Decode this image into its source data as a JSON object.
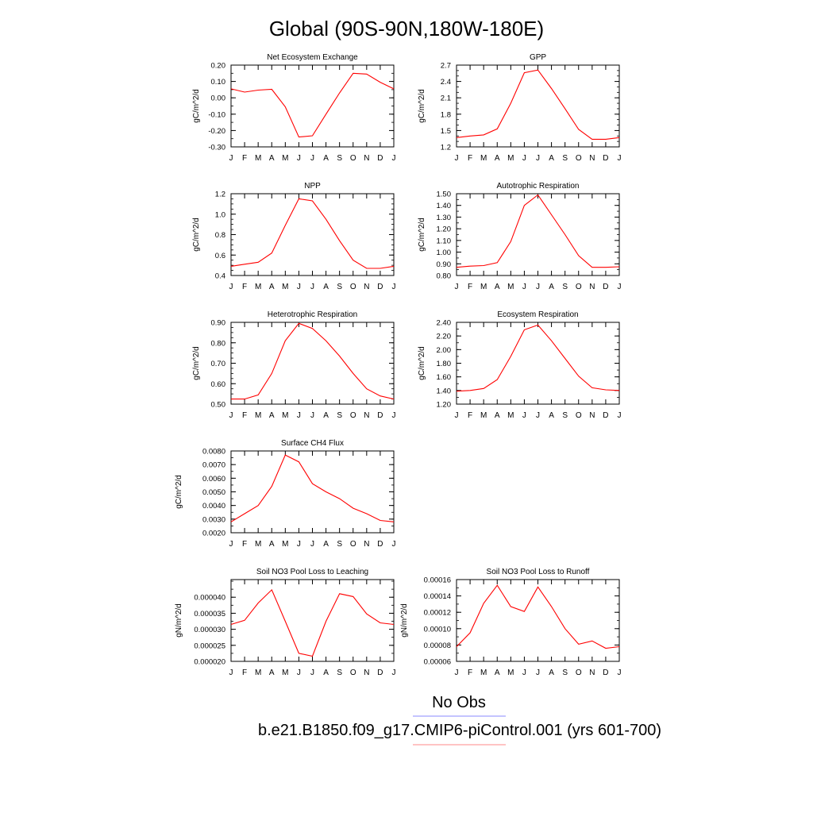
{
  "page": {
    "title": "Global (90S-90N,180W-180E)",
    "legend": {
      "obs_label": "No Obs",
      "obs_color": "#8a8aff",
      "model_label": "b.e21.B1850.f09_g17.CMIP6-piControl.001 (yrs 601-700)",
      "model_color": "#ff8a8a"
    }
  },
  "chart_data": [
    {
      "type": "line",
      "title": "Net Ecosystem Exchange",
      "ylabel": "gC/m^2/d",
      "x": [
        "J",
        "F",
        "M",
        "A",
        "M",
        "J",
        "J",
        "A",
        "S",
        "O",
        "N",
        "D",
        "J"
      ],
      "series": [
        {
          "color": "#ff0000",
          "values": [
            0.055,
            0.035,
            0.047,
            0.052,
            -0.055,
            -0.24,
            -0.232,
            -0.1,
            0.03,
            0.15,
            0.145,
            0.095,
            0.055
          ]
        }
      ],
      "ylim": [
        -0.3,
        0.2
      ],
      "yticks": [
        "0.20",
        "0.10",
        "0.00",
        "-0.10",
        "-0.20",
        "-0.30"
      ],
      "yminor": 0.05
    },
    {
      "type": "line",
      "title": "GPP",
      "ylabel": "gC/m^2/d",
      "x": [
        "J",
        "F",
        "M",
        "A",
        "M",
        "J",
        "J",
        "A",
        "S",
        "O",
        "N",
        "D",
        "J"
      ],
      "series": [
        {
          "color": "#ff0000",
          "values": [
            1.37,
            1.4,
            1.42,
            1.53,
            2.0,
            2.56,
            2.61,
            2.27,
            1.9,
            1.52,
            1.34,
            1.34,
            1.37
          ]
        }
      ],
      "ylim": [
        1.2,
        2.7
      ],
      "yticks": [
        "2.7",
        "2.4",
        "2.1",
        "1.8",
        "1.5",
        "1.2"
      ],
      "yminor": 0.1
    },
    {
      "type": "line",
      "title": "NPP",
      "ylabel": "gC/m^2/d",
      "x": [
        "J",
        "F",
        "M",
        "A",
        "M",
        "J",
        "J",
        "A",
        "S",
        "O",
        "N",
        "D",
        "J"
      ],
      "series": [
        {
          "color": "#ff0000",
          "values": [
            0.49,
            0.51,
            0.53,
            0.62,
            0.89,
            1.15,
            1.13,
            0.95,
            0.74,
            0.55,
            0.47,
            0.47,
            0.49
          ]
        }
      ],
      "ylim": [
        0.4,
        1.2
      ],
      "yticks": [
        "1.2",
        "1.0",
        "0.8",
        "0.6",
        "0.4"
      ],
      "yminor": 0.05
    },
    {
      "type": "line",
      "title": "Autotrophic Respiration",
      "ylabel": "gC/m^2/d",
      "x": [
        "J",
        "F",
        "M",
        "A",
        "M",
        "J",
        "J",
        "A",
        "S",
        "O",
        "N",
        "D",
        "J"
      ],
      "series": [
        {
          "color": "#ff0000",
          "values": [
            0.87,
            0.88,
            0.885,
            0.91,
            1.09,
            1.4,
            1.49,
            1.32,
            1.15,
            0.97,
            0.87,
            0.87,
            0.875
          ]
        }
      ],
      "ylim": [
        0.8,
        1.5
      ],
      "yticks": [
        "1.50",
        "1.40",
        "1.30",
        "1.20",
        "1.10",
        "1.00",
        "0.90",
        "0.80"
      ],
      "yminor": 0.05
    },
    {
      "type": "line",
      "title": "Heterotrophic Respiration",
      "ylabel": "gC/m^2/d",
      "x": [
        "J",
        "F",
        "M",
        "A",
        "M",
        "J",
        "J",
        "A",
        "S",
        "O",
        "N",
        "D",
        "J"
      ],
      "series": [
        {
          "color": "#ff0000",
          "values": [
            0.525,
            0.525,
            0.545,
            0.65,
            0.81,
            0.895,
            0.87,
            0.81,
            0.735,
            0.65,
            0.575,
            0.54,
            0.525
          ]
        }
      ],
      "ylim": [
        0.5,
        0.9
      ],
      "yticks": [
        "0.90",
        "0.80",
        "0.70",
        "0.60",
        "0.50"
      ],
      "yminor": 0.025
    },
    {
      "type": "line",
      "title": "Ecosystem Respiration",
      "ylabel": "gC/m^2/d",
      "x": [
        "J",
        "F",
        "M",
        "A",
        "M",
        "J",
        "J",
        "A",
        "S",
        "O",
        "N",
        "D",
        "J"
      ],
      "series": [
        {
          "color": "#ff0000",
          "values": [
            1.39,
            1.4,
            1.43,
            1.56,
            1.9,
            2.29,
            2.36,
            2.13,
            1.87,
            1.61,
            1.44,
            1.41,
            1.4
          ]
        }
      ],
      "ylim": [
        1.2,
        2.4
      ],
      "yticks": [
        "2.40",
        "2.20",
        "2.00",
        "1.80",
        "1.60",
        "1.40",
        "1.20"
      ],
      "yminor": 0.1
    },
    {
      "type": "line",
      "title": "Surface CH4 Flux",
      "ylabel": "gC/m^2/d",
      "x": [
        "J",
        "F",
        "M",
        "A",
        "M",
        "J",
        "J",
        "A",
        "S",
        "O",
        "N",
        "D",
        "J"
      ],
      "series": [
        {
          "color": "#ff0000",
          "values": [
            0.0028,
            0.0034,
            0.004,
            0.0054,
            0.0077,
            0.0072,
            0.0056,
            0.005,
            0.0045,
            0.0038,
            0.0034,
            0.0029,
            0.0028
          ]
        }
      ],
      "ylim": [
        0.002,
        0.008
      ],
      "yticks": [
        "0.0080",
        "0.0070",
        "0.0060",
        "0.0050",
        "0.0040",
        "0.0030",
        "0.0020"
      ],
      "yminor": 0.0005
    },
    null,
    {
      "type": "line",
      "title": "Soil NO3 Pool Loss to Leaching",
      "ylabel": "gN/m^2/d",
      "x": [
        "J",
        "F",
        "M",
        "A",
        "M",
        "J",
        "J",
        "A",
        "S",
        "O",
        "N",
        "D",
        "J"
      ],
      "series": [
        {
          "color": "#ff0000",
          "values": [
            3.15e-05,
            3.28e-05,
            3.82e-05,
            4.23e-05,
            3.25e-05,
            2.25e-05,
            2.16e-05,
            3.25e-05,
            4.11e-05,
            4.02e-05,
            3.48e-05,
            3.2e-05,
            3.15e-05
          ]
        }
      ],
      "ylim": [
        2e-05,
        4.55e-05
      ],
      "yticks": [
        "0.000040",
        "0.000035",
        "0.000030",
        "0.000025",
        "0.000020"
      ],
      "yticks_at": [
        4e-05,
        3.5e-05,
        3e-05,
        2.5e-05,
        2e-05
      ],
      "yminor": 2.5e-06
    },
    {
      "type": "line",
      "title": "Soil NO3 Pool Loss to Runoff",
      "ylabel": "gN/m^2/d",
      "x": [
        "J",
        "F",
        "M",
        "A",
        "M",
        "J",
        "J",
        "A",
        "S",
        "O",
        "N",
        "D",
        "J"
      ],
      "series": [
        {
          "color": "#ff0000",
          "values": [
            7.8e-05,
            9.5e-05,
            0.000131,
            0.000153,
            0.000127,
            0.000121,
            0.000151,
            0.000127,
            0.0001,
            8.1e-05,
            8.5e-05,
            7.6e-05,
            7.8e-05
          ]
        }
      ],
      "ylim": [
        6e-05,
        0.00016
      ],
      "yticks": [
        "0.00016",
        "0.00014",
        "0.00012",
        "0.00010",
        "0.00008",
        "0.00006"
      ],
      "yminor": 1e-05
    }
  ]
}
